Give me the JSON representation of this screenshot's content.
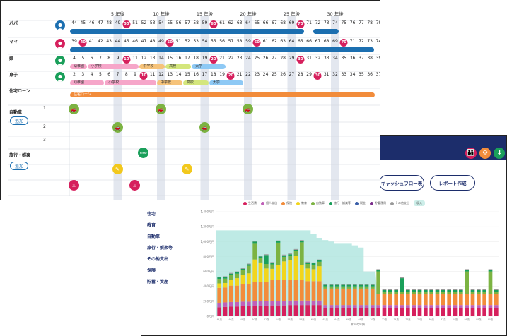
{
  "back_panel": {
    "header_icons": [
      "people-icon",
      "settings-icon",
      "download-icon"
    ],
    "buttons": {
      "cashflow": "キャッシュフロー表",
      "report": "レポート作成"
    },
    "menu": [
      "住宅",
      "教育",
      "自動車",
      "旅行・娯楽等",
      "その他支出",
      "保険",
      "貯蓄・資産"
    ],
    "legend": [
      {
        "name": "生活費",
        "color": "#d6205d"
      },
      {
        "name": "個人支出",
        "color": "#c060b8"
      },
      {
        "name": "保険",
        "color": "#f28c3b"
      },
      {
        "name": "教育",
        "color": "#f2d51c"
      },
      {
        "name": "自動車",
        "color": "#7cb342"
      },
      {
        "name": "旅行・娯楽等",
        "color": "#1a9f5a"
      },
      {
        "name": "税金",
        "color": "#3a5fa8"
      },
      {
        "name": "貯蓄運用",
        "color": "#7b2d8b"
      },
      {
        "name": "その他支出",
        "color": "#999999"
      },
      {
        "name": "収入",
        "color": "#a8e3dc"
      }
    ]
  },
  "chart_data": {
    "type": "bar",
    "stacked": true,
    "ylim": [
      0,
      1400
    ],
    "yticks": [
      "0万円",
      "200万円",
      "400万円",
      "600万円",
      "800万円",
      "1,000万円",
      "1,200万円",
      "1,400万円"
    ],
    "xlabel": "本人の年齢",
    "x": [
      44,
      45,
      46,
      47,
      48,
      49,
      50,
      51,
      52,
      53,
      54,
      55,
      56,
      57,
      58,
      59,
      60,
      61,
      62,
      63,
      64,
      65,
      66,
      67,
      68,
      69,
      70,
      71,
      72,
      73,
      74,
      75,
      76,
      77,
      78,
      79,
      80,
      81,
      82,
      83,
      84,
      85,
      86,
      87,
      88,
      89,
      90,
      91
    ],
    "income": [
      1150,
      1150,
      1150,
      1150,
      1150,
      1150,
      1150,
      1150,
      1150,
      1150,
      1150,
      1150,
      1150,
      1150,
      1150,
      1150,
      1100,
      1050,
      1020,
      1000,
      980,
      980,
      980,
      950,
      920,
      600,
      600,
      0,
      0,
      0,
      0,
      0,
      0,
      0,
      0,
      0,
      0,
      0,
      0,
      0,
      0,
      0,
      0,
      0,
      0,
      0,
      0,
      0
    ],
    "series": [
      {
        "name": "生活費",
        "values": [
          120,
          125,
          130,
          130,
          135,
          135,
          140,
          140,
          140,
          145,
          145,
          145,
          150,
          150,
          150,
          150,
          150,
          150,
          110,
          110,
          110,
          110,
          110,
          110,
          110,
          110,
          110,
          110,
          110,
          110,
          110,
          110,
          110,
          110,
          110,
          110,
          110,
          110,
          110,
          110,
          110,
          110,
          110,
          110,
          110,
          110,
          110,
          110
        ]
      },
      {
        "name": "個人支出",
        "values": [
          60,
          60,
          60,
          60,
          60,
          60,
          60,
          60,
          60,
          60,
          60,
          60,
          60,
          60,
          60,
          60,
          60,
          60,
          40,
          40,
          40,
          40,
          40,
          40,
          40,
          40,
          40,
          40,
          40,
          40,
          40,
          40,
          40,
          40,
          40,
          40,
          40,
          40,
          40,
          40,
          40,
          40,
          40,
          40,
          40,
          40,
          40,
          40
        ]
      },
      {
        "name": "保険",
        "values": [
          200,
          200,
          220,
          220,
          240,
          240,
          260,
          260,
          260,
          280,
          280,
          280,
          280,
          280,
          280,
          260,
          260,
          260,
          220,
          220,
          220,
          220,
          220,
          220,
          220,
          220,
          220,
          150,
          150,
          150,
          150,
          150,
          150,
          150,
          150,
          150,
          150,
          150,
          150,
          150,
          150,
          150,
          150,
          150,
          150,
          150,
          150,
          150
        ]
      },
      {
        "name": "教育",
        "values": [
          60,
          60,
          80,
          100,
          120,
          140,
          300,
          260,
          180,
          150,
          200,
          250,
          260,
          320,
          200,
          170,
          160,
          200,
          0,
          0,
          0,
          0,
          0,
          0,
          0,
          0,
          0,
          0,
          0,
          0,
          0,
          0,
          0,
          0,
          0,
          0,
          0,
          0,
          0,
          0,
          0,
          0,
          0,
          0,
          0,
          0,
          0,
          0
        ]
      },
      {
        "name": "自動車",
        "values": [
          60,
          60,
          60,
          60,
          60,
          100,
          220,
          60,
          60,
          60,
          300,
          60,
          60,
          60,
          300,
          60,
          60,
          60,
          30,
          30,
          30,
          30,
          30,
          30,
          30,
          30,
          30,
          300,
          30,
          30,
          30,
          30,
          30,
          30,
          30,
          30,
          30,
          30,
          30,
          30,
          30,
          30,
          300,
          30,
          30,
          30,
          300,
          30
        ]
      },
      {
        "name": "旅行・娯楽等",
        "values": [
          20,
          20,
          20,
          20,
          20,
          20,
          20,
          20,
          120,
          20,
          20,
          20,
          20,
          20,
          20,
          20,
          20,
          20,
          20,
          20,
          20,
          20,
          20,
          20,
          20,
          20,
          20,
          20,
          20,
          20,
          20,
          180,
          20,
          20,
          20,
          20,
          20,
          20,
          20,
          20,
          20,
          20,
          20,
          20,
          20,
          20,
          20,
          20
        ]
      },
      {
        "name": "その他支出",
        "values": [
          10,
          10,
          10,
          10,
          10,
          10,
          10,
          10,
          10,
          10,
          10,
          10,
          10,
          10,
          10,
          10,
          10,
          10,
          10,
          10,
          10,
          10,
          10,
          10,
          10,
          10,
          10,
          10,
          10,
          10,
          10,
          10,
          10,
          10,
          10,
          10,
          10,
          10,
          10,
          10,
          10,
          10,
          10,
          10,
          10,
          10,
          10,
          10
        ]
      }
    ]
  },
  "front_panel": {
    "year_ticks": [
      {
        "label": "5 年後",
        "offset": 5
      },
      {
        "label": "10 年後",
        "offset": 10
      },
      {
        "label": "15 年後",
        "offset": 15
      },
      {
        "label": "20 年後",
        "offset": 20
      },
      {
        "label": "25 年後",
        "offset": 25
      },
      {
        "label": "30 年後",
        "offset": 30
      }
    ],
    "members": [
      {
        "label": "パパ",
        "start_age": 44,
        "avatar_color": "#1c6fb0",
        "milestones": [
          50,
          60,
          70
        ]
      },
      {
        "label": "ママ",
        "start_age": 39,
        "avatar_color": "#d6205d",
        "milestones": [
          40,
          50,
          60,
          70
        ]
      },
      {
        "label": "娘",
        "start_age": 4,
        "avatar_color": "#1a9f5a",
        "milestones": [
          10,
          20,
          30
        ]
      },
      {
        "label": "息子",
        "start_age": 2,
        "avatar_color": "#1a9f5a",
        "milestones": [
          10,
          20,
          30
        ]
      }
    ],
    "papa_bars": [
      {
        "from": 0,
        "to": 27,
        "color": "#1c6fb0"
      },
      {
        "from": 28,
        "to": 31,
        "color": "#1c6fb0"
      }
    ],
    "mama_bars": [
      {
        "from": 0,
        "to": 35,
        "color": "#1c6fb0"
      }
    ],
    "daughter_bars": [
      {
        "label": "幼稚園",
        "from": 0,
        "to": 2,
        "color": "#f6a6c9"
      },
      {
        "label": "小学校",
        "from": 2,
        "to": 8,
        "color": "#f6a6c9"
      },
      {
        "label": "中学校",
        "from": 8,
        "to": 11,
        "color": "#f6c37a"
      },
      {
        "label": "高校",
        "from": 11,
        "to": 14,
        "color": "#d4e67c"
      },
      {
        "label": "大学",
        "from": 14,
        "to": 18,
        "color": "#8ec9f5"
      }
    ],
    "son_bars": [
      {
        "label": "幼稚園",
        "from": 0,
        "to": 4,
        "color": "#f6a6c9"
      },
      {
        "label": "小学校",
        "from": 4,
        "to": 10,
        "color": "#f6a6c9"
      },
      {
        "label": "中学校",
        "from": 10,
        "to": 13,
        "color": "#f6c37a"
      },
      {
        "label": "高校",
        "from": 13,
        "to": 16,
        "color": "#d4e67c"
      },
      {
        "label": "大学",
        "from": 16,
        "to": 20,
        "color": "#8ec9f5"
      }
    ],
    "loan": {
      "label": "住宅ローン",
      "bar_label": "住宅ローン",
      "from": 0,
      "to": 35,
      "color": "#f28c3b"
    },
    "car": {
      "label": "自動車",
      "add_label": "追加",
      "slots": [
        "1",
        "2",
        "3"
      ],
      "events": [
        {
          "slot": 0,
          "offset": 0
        },
        {
          "slot": 0,
          "offset": 10
        },
        {
          "slot": 0,
          "offset": 20
        },
        {
          "slot": 1,
          "offset": 5
        },
        {
          "slot": 1,
          "offset": 15
        }
      ]
    },
    "travel": {
      "label": "旅行・娯楽",
      "add_label": "追加",
      "events": [
        {
          "row": 0,
          "offset": 8,
          "color": "#1a9f5a",
          "icon": "gift-icon",
          "text": "EVENT"
        },
        {
          "row": 1,
          "offset": 5,
          "color": "#f2c81c",
          "icon": "edit-icon",
          "text": "✎"
        },
        {
          "row": 1,
          "offset": 13,
          "color": "#f2c81c",
          "icon": "edit-icon",
          "text": "✎"
        },
        {
          "row": 2,
          "offset": 0,
          "color": "#d6205d",
          "icon": "pet-icon",
          "text": "♨"
        },
        {
          "row": 2,
          "offset": 7,
          "color": "#d6205d",
          "icon": "pet-icon",
          "text": "♨"
        }
      ]
    }
  }
}
